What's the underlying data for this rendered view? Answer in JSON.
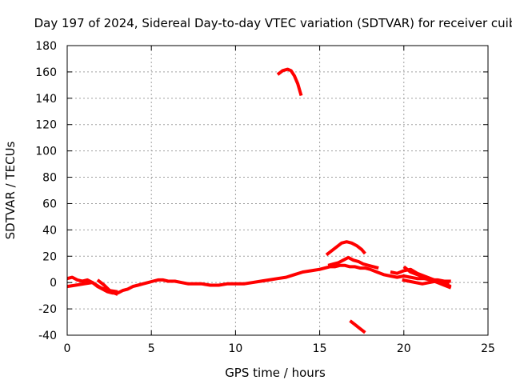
{
  "chart_data": {
    "type": "line",
    "title": "Day 197 of 2024, Sidereal Day-to-day VTEC variation (SDTVAR) for receiver cuib",
    "xlabel": "GPS time / hours",
    "ylabel": "SDTVAR / TECUs",
    "xlim": [
      0,
      25
    ],
    "ylim": [
      -40,
      180
    ],
    "xticks": [
      0,
      5,
      10,
      15,
      20,
      25
    ],
    "yticks": [
      -40,
      -20,
      0,
      20,
      40,
      60,
      80,
      100,
      120,
      140,
      160,
      180
    ],
    "grid": true,
    "color": "#ff0000",
    "series": [
      {
        "name": "main-trace",
        "x": [
          0.0,
          0.3,
          0.6,
          0.9,
          1.2,
          1.5,
          1.8,
          2.1,
          2.4,
          2.7,
          3.0,
          3.3,
          3.6,
          3.9,
          4.2,
          4.5,
          4.8,
          5.1,
          5.4,
          5.7,
          6.0,
          6.4,
          6.8,
          7.2,
          7.6,
          8.0,
          8.5,
          9.0,
          9.5,
          10.0,
          10.5,
          11.0,
          11.5,
          12.0,
          12.5,
          13.0,
          13.5,
          14.0,
          14.5,
          15.0,
          15.3,
          15.6,
          15.9,
          16.2,
          16.5,
          16.8,
          17.1,
          17.4,
          17.7,
          18.0,
          18.4,
          18.8,
          19.2,
          19.6,
          20.0,
          20.4,
          20.8,
          21.2,
          21.6,
          22.0,
          22.4,
          22.8
        ],
        "y": [
          3,
          4,
          2,
          1,
          2,
          0,
          -3,
          -5,
          -7,
          -8,
          -8,
          -6,
          -5,
          -3,
          -2,
          -1,
          0,
          1,
          2,
          2,
          1,
          1,
          0,
          -1,
          -1,
          -1,
          -2,
          -2,
          -1,
          -1,
          -1,
          0,
          1,
          2,
          3,
          4,
          6,
          8,
          9,
          10,
          11,
          12,
          12,
          13,
          13,
          12,
          12,
          11,
          11,
          10,
          8,
          6,
          5,
          4,
          5,
          4,
          3,
          3,
          2,
          2,
          1,
          1
        ]
      },
      {
        "name": "trace-b",
        "x": [
          0.0,
          0.5,
          1.0,
          1.5,
          2.0,
          2.5,
          3.0
        ],
        "y": [
          -3,
          -2,
          -1,
          0,
          -4,
          -6,
          -7
        ]
      },
      {
        "name": "trace-c",
        "x": [
          1.8,
          2.2,
          2.6,
          3.0
        ],
        "y": [
          2,
          -2,
          -7,
          -9
        ]
      },
      {
        "name": "trace-d",
        "x": [
          15.5,
          15.8,
          16.1,
          16.4,
          16.7,
          17.0,
          17.3,
          17.6,
          17.9,
          18.2,
          18.5
        ],
        "y": [
          13,
          14,
          15,
          17,
          19,
          17,
          16,
          14,
          13,
          12,
          11
        ]
      },
      {
        "name": "trace-e",
        "x": [
          19.2,
          19.6,
          20.0,
          20.4,
          20.8,
          21.2,
          21.6,
          22.0,
          22.4,
          22.8
        ],
        "y": [
          8,
          7,
          9,
          10,
          7,
          5,
          3,
          1,
          -1,
          -3
        ]
      },
      {
        "name": "trace-f",
        "x": [
          19.9,
          20.3,
          20.7,
          21.1,
          21.5,
          21.9,
          22.3,
          22.7
        ],
        "y": [
          2,
          1,
          0,
          -1,
          0,
          1,
          0,
          -1
        ]
      },
      {
        "name": "trace-g",
        "x": [
          20.0,
          20.4,
          20.8,
          21.2,
          21.6,
          22.0,
          22.4,
          22.8
        ],
        "y": [
          12,
          8,
          6,
          4,
          2,
          0,
          -2,
          -4
        ]
      },
      {
        "name": "high-arc",
        "x": [
          12.5,
          12.8,
          13.1,
          13.3,
          13.5,
          13.7,
          13.9
        ],
        "y": [
          158,
          161,
          162,
          161,
          157,
          151,
          142
        ]
      },
      {
        "name": "mid-arc",
        "x": [
          15.4,
          15.7,
          16.0,
          16.3,
          16.6,
          16.9,
          17.2,
          17.5,
          17.7
        ],
        "y": [
          21,
          24,
          27,
          30,
          31,
          30,
          28,
          25,
          22
        ]
      },
      {
        "name": "low-segment",
        "x": [
          16.8,
          17.1,
          17.4,
          17.7
        ],
        "y": [
          -29,
          -32,
          -35,
          -38
        ]
      }
    ]
  }
}
